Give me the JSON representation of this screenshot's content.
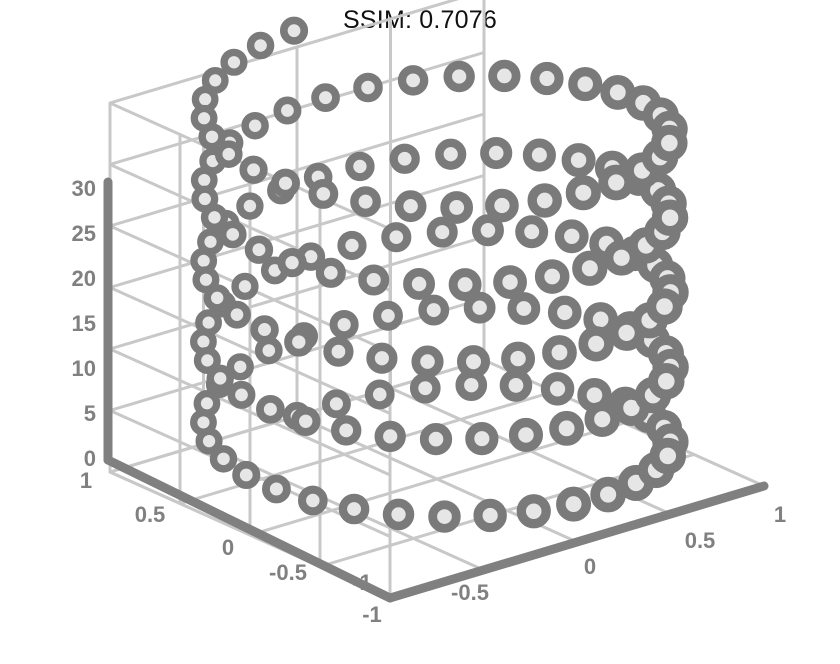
{
  "title": "SSIM: 0.7076",
  "colors": {
    "background": "#ffffff",
    "marker": "#7a7a7a",
    "marker_core": "#e6e6e6",
    "axis": "#808080",
    "grid": "#c8c8c8",
    "title_text": "#111111"
  },
  "chart_data": {
    "type": "scatter",
    "projection": "3d",
    "marker": "ring",
    "series": [
      {
        "parametric": "helix",
        "x": "sin(t)",
        "y": "cos(t)",
        "z": "t",
        "t_range": [
          0,
          31.4
        ],
        "points": 160
      }
    ],
    "axes": {
      "x": {
        "range": [
          -1,
          1
        ],
        "ticks": [
          "-1",
          "-0.5",
          "0",
          "0.5",
          "1"
        ]
      },
      "y": {
        "range": [
          -1,
          1
        ],
        "ticks": [
          "-1",
          "-0.5",
          "0",
          "0.5",
          "1"
        ]
      },
      "z": {
        "range": [
          0,
          30
        ],
        "ticks": [
          "0",
          "5",
          "10",
          "15",
          "20",
          "25",
          "30"
        ]
      }
    },
    "grid": true,
    "legend": "none"
  }
}
